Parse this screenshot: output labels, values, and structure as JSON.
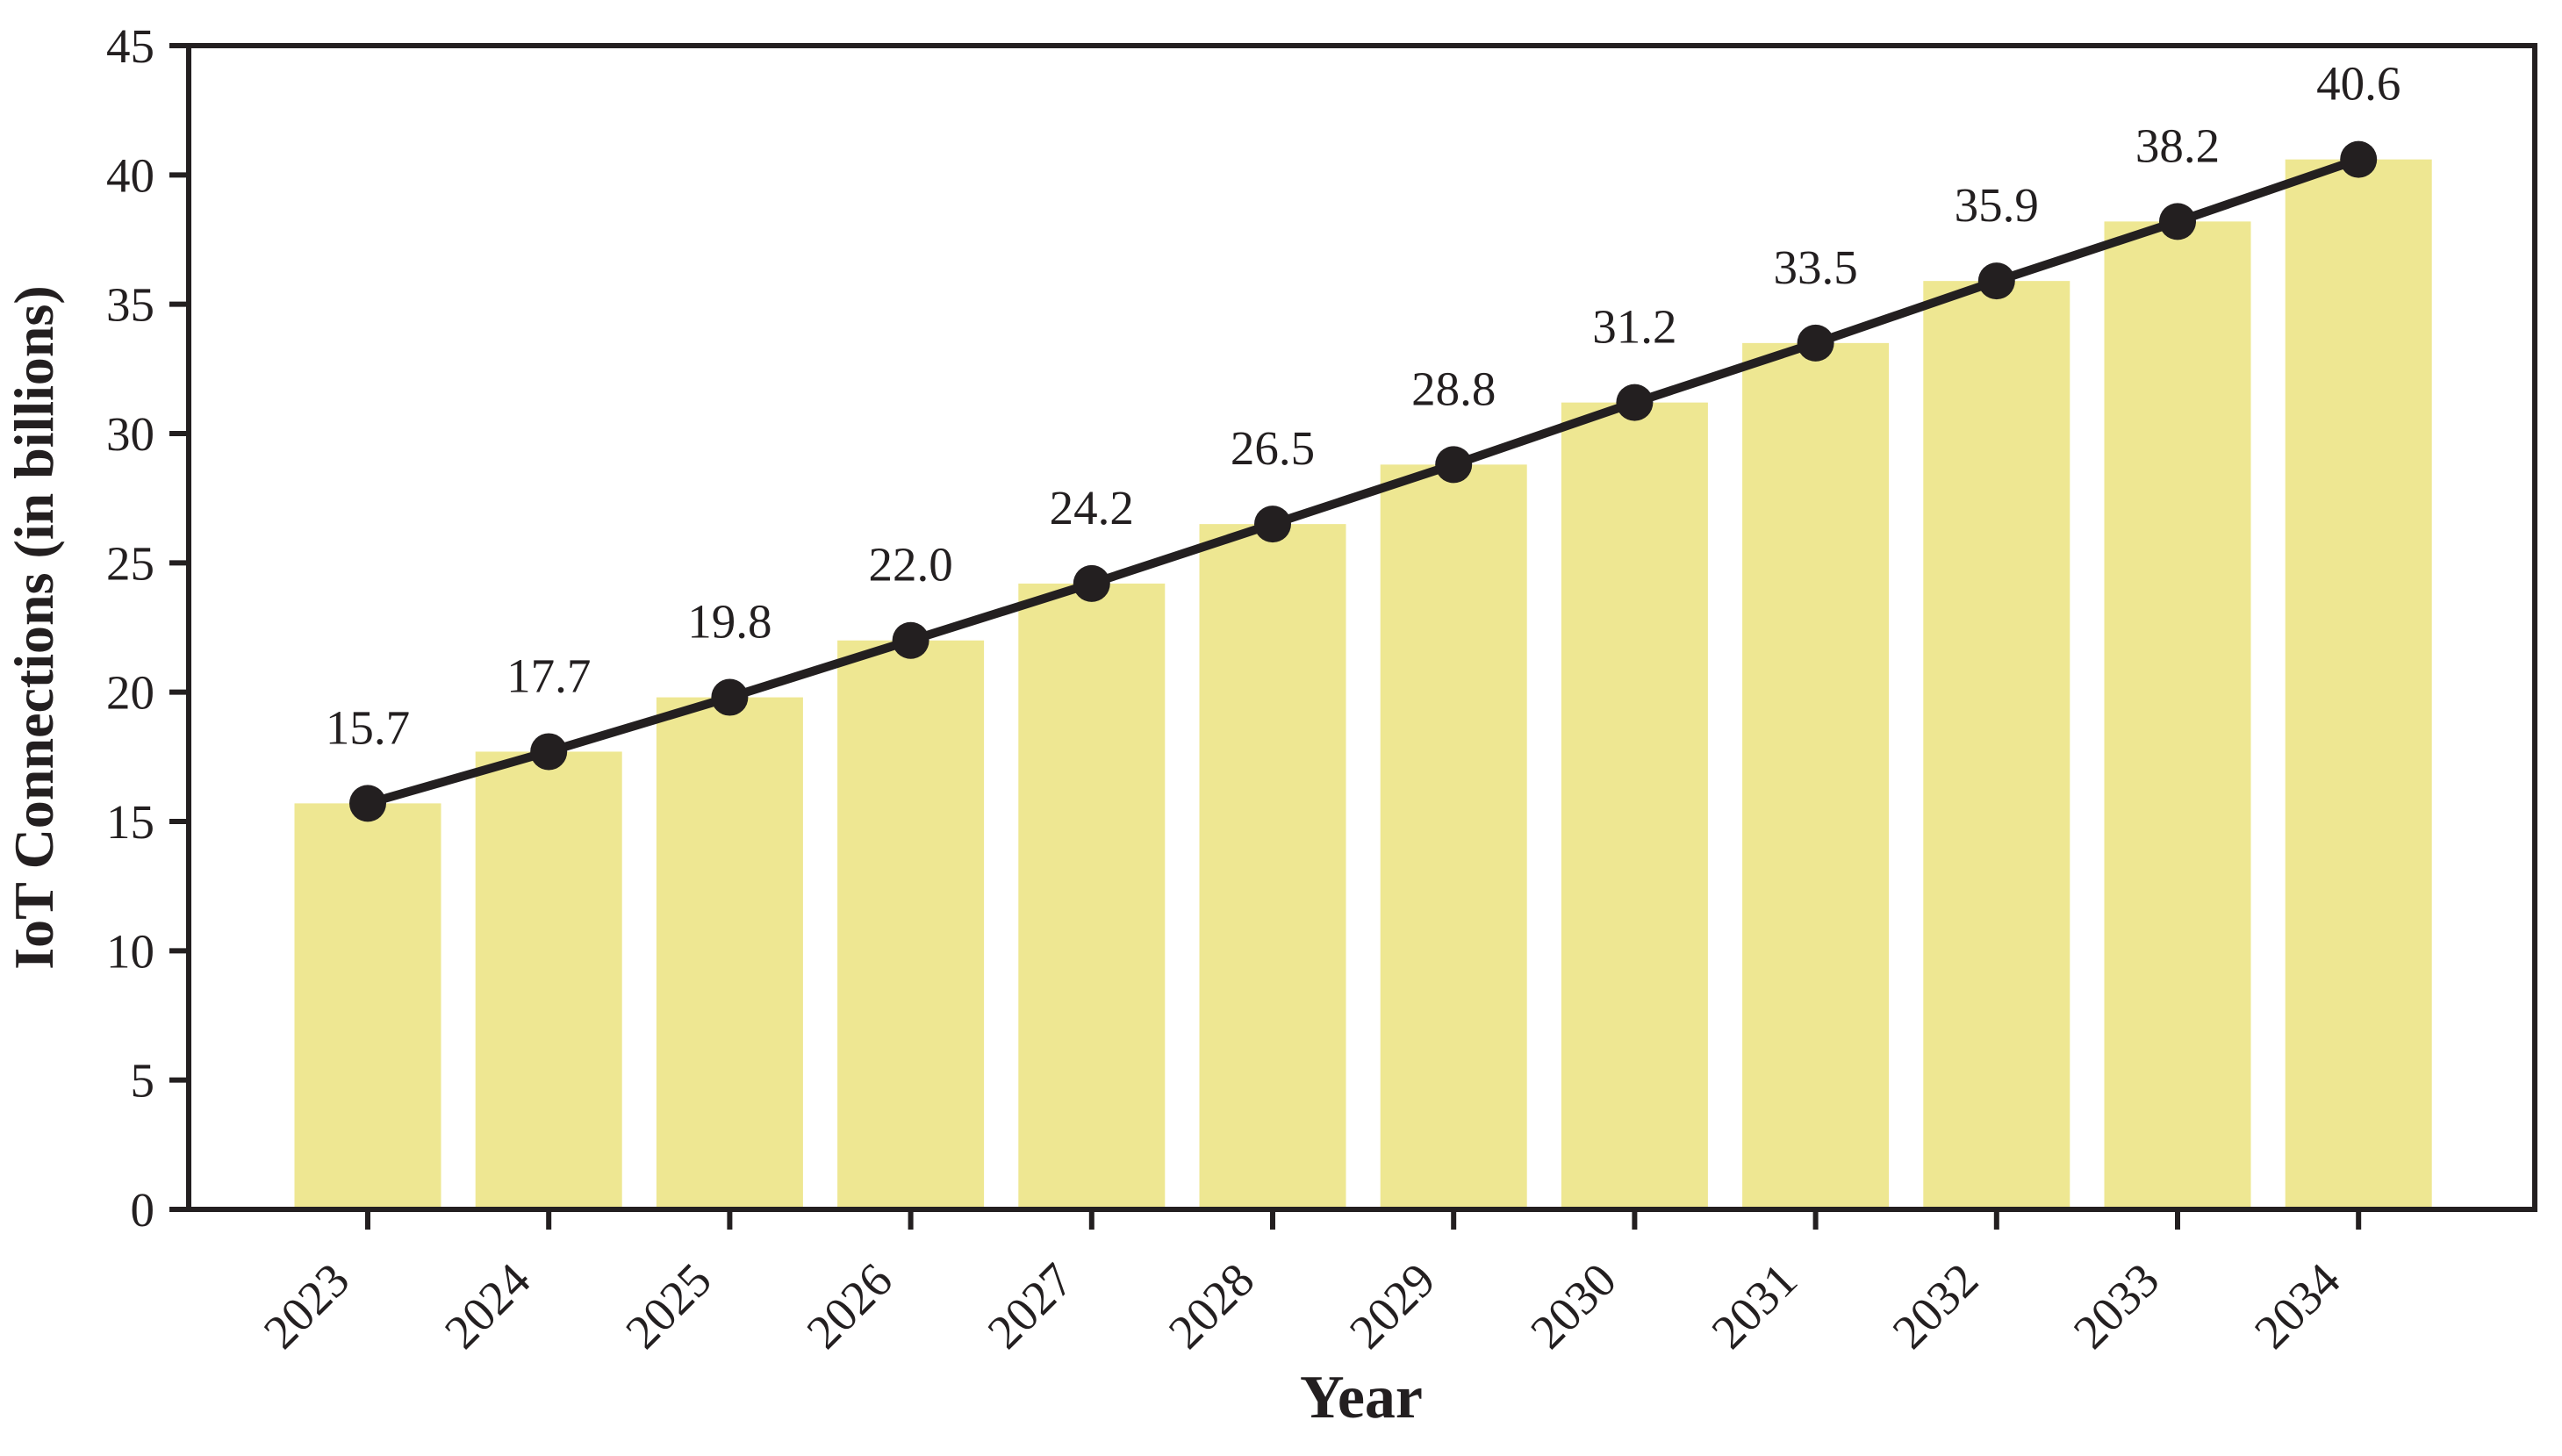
{
  "chart_data": {
    "type": "bar",
    "overlay": "line",
    "title": "",
    "categories": [
      "2023",
      "2024",
      "2025",
      "2026",
      "2027",
      "2028",
      "2029",
      "2030",
      "2031",
      "2032",
      "2033",
      "2034"
    ],
    "values": [
      15.7,
      17.7,
      19.8,
      22.0,
      24.2,
      26.5,
      28.8,
      31.2,
      33.5,
      35.9,
      38.2,
      40.6
    ],
    "value_labels": [
      "15.7",
      "17.7",
      "19.8",
      "22.0",
      "24.2",
      "26.5",
      "28.8",
      "31.2",
      "33.5",
      "35.9",
      "38.2",
      "40.6"
    ],
    "xlabel": "Year",
    "ylabel": "IoT Connections (in billions)",
    "ylim": [
      0,
      45
    ],
    "yticks": [
      0,
      5,
      10,
      15,
      20,
      25,
      30,
      35,
      40,
      45
    ],
    "grid": false,
    "legend": null,
    "bar_color": "#EEE792",
    "line_color": "#231F20",
    "marker_style": "filled-circle",
    "text_color": "#231F20",
    "frame_color": "#231F20",
    "background": "#FFFFFF"
  }
}
